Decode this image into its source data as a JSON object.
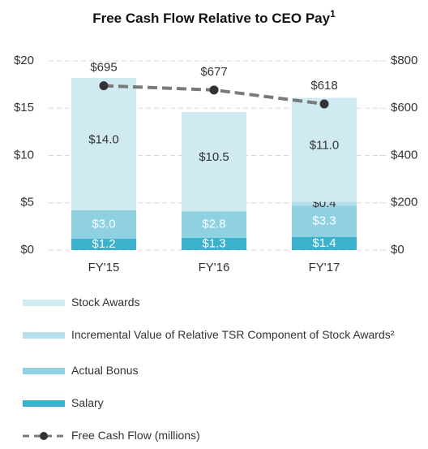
{
  "chart_data": {
    "type": "stacked_bar_line",
    "title": "Free Cash Flow Relative to CEO Pay",
    "title_note": "1",
    "categories": [
      "FY'15",
      "FY'16",
      "FY'17"
    ],
    "series": [
      {
        "name": "Salary",
        "color": "#3cb1cd",
        "values": [
          1.2,
          1.3,
          1.4
        ],
        "value_labels": [
          "$1.2",
          "$1.3",
          "$1.4"
        ]
      },
      {
        "name": "Actual Bonus",
        "color": "#8fd0e1",
        "values": [
          3.0,
          2.8,
          3.3
        ],
        "value_labels": [
          "$3.0",
          "$2.8",
          "$3.3"
        ]
      },
      {
        "name": "Incremental Value of Relative TSR Component of Stock Awards²",
        "color": "#b5dfea",
        "values": [
          0,
          0,
          0.4
        ],
        "value_labels": [
          null,
          null,
          "$0.4"
        ]
      },
      {
        "name": "Stock Awards",
        "color": "#cfeaf1",
        "values": [
          14.0,
          10.5,
          11.0
        ],
        "value_labels": [
          "$14.0",
          "$10.5",
          "$11.0"
        ]
      },
      {
        "name": "Free Cash Flow (millions)",
        "type": "line",
        "axis": "y2",
        "color": "#7a7a7a",
        "marker_color": "#333333",
        "values": [
          695,
          677,
          618
        ],
        "value_labels": [
          "$695",
          "$677",
          "$618"
        ]
      }
    ],
    "ylim": [
      0,
      20
    ],
    "yticks": [
      {
        "value": 0,
        "label": "$0"
      },
      {
        "value": 5,
        "label": "$5"
      },
      {
        "value": 10,
        "label": "$10"
      },
      {
        "value": 15,
        "label": "$15"
      },
      {
        "value": 20,
        "label": "$20"
      }
    ],
    "y2lim": [
      0,
      800
    ],
    "y2ticks": [
      {
        "value": 0,
        "label": "$0"
      },
      {
        "value": 200,
        "label": "$200"
      },
      {
        "value": 400,
        "label": "$400"
      },
      {
        "value": 600,
        "label": "$600"
      },
      {
        "value": 800,
        "label": "$800"
      }
    ],
    "grid": true
  }
}
